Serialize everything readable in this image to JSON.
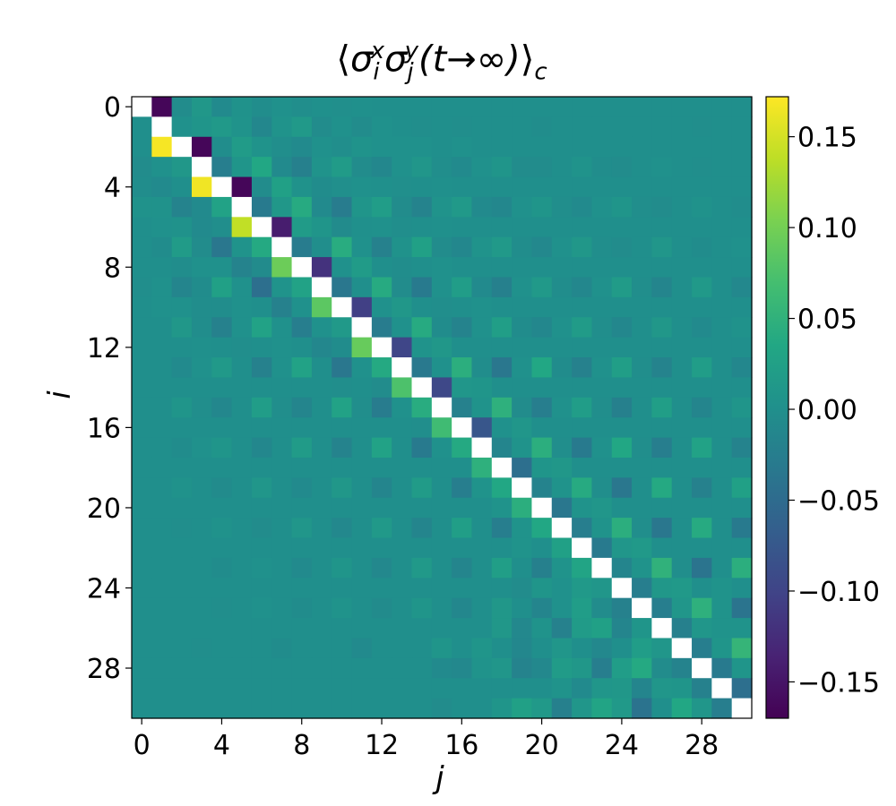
{
  "chart_data": {
    "type": "heatmap",
    "title": "⟨σᵢˣσⱼʸ(t→∞)⟩꜀",
    "title_parts": {
      "open": "⟨",
      "sigma1": "σ",
      "sup1": "x",
      "sub1": "i",
      "sigma2": "σ",
      "sup2": "y",
      "sub2": "j",
      "arg": "(t→∞)",
      "close": "⟩",
      "subc": "c"
    },
    "xlabel": "j",
    "ylabel": "i",
    "n": 31,
    "x_ticks": [
      "0",
      "4",
      "8",
      "12",
      "16",
      "20",
      "24",
      "28"
    ],
    "y_ticks": [
      "0",
      "4",
      "8",
      "12",
      "16",
      "20",
      "24",
      "28"
    ],
    "colorbar_ticks": [
      "0.15",
      "0.10",
      "0.05",
      "0.00",
      "−0.05",
      "−0.10",
      "−0.15"
    ],
    "colorbar_tick_values": [
      0.15,
      0.1,
      0.05,
      0.0,
      -0.05,
      -0.1,
      -0.15
    ],
    "vmin": -0.17,
    "vmax": 0.172,
    "colormap": "viridis",
    "diagonal": "NaN (white)",
    "cells_note": "Values read approximately; off-pattern cells ≈ 0.00",
    "values": [
      [
        null,
        -0.165,
        -0.005,
        0.012,
        -0.008,
        0.004,
        -0.003,
        0.002,
        -0.002,
        0.001,
        -0.001,
        0.001,
        0,
        0,
        0,
        0,
        0,
        0,
        0,
        0,
        0,
        0,
        0,
        0,
        0,
        0,
        0,
        0,
        0,
        0,
        0
      ],
      [
        0,
        null,
        0.002,
        0.008,
        0.015,
        0.005,
        -0.012,
        0.005,
        0.015,
        -0.005,
        0.002,
        -0.005,
        0.002,
        0,
        -0.002,
        0,
        -0.002,
        0,
        0,
        0,
        -0.003,
        0,
        0,
        0,
        0,
        0,
        0,
        0,
        -0.002,
        0,
        0
      ],
      [
        0,
        0.168,
        null,
        -0.165,
        -0.003,
        0.018,
        0.005,
        -0.002,
        -0.008,
        0.002,
        -0.002,
        0.005,
        0.002,
        0.002,
        0.002,
        0,
        0.002,
        0,
        0,
        0,
        0,
        0,
        0,
        0,
        0,
        0,
        0,
        0,
        0,
        0,
        0
      ],
      [
        -0.005,
        0.003,
        0.012,
        null,
        -0.025,
        0.008,
        0.035,
        -0.008,
        -0.022,
        0.005,
        0.018,
        -0.005,
        -0.012,
        0.002,
        0.01,
        -0.002,
        -0.008,
        0.002,
        0.008,
        -0.005,
        -0.005,
        0,
        0.005,
        -0.003,
        -0.005,
        0,
        0.003,
        0,
        -0.002,
        0,
        0
      ],
      [
        -0.003,
        -0.008,
        0,
        0.165,
        null,
        -0.165,
        -0.005,
        0.025,
        0.004,
        -0.004,
        -0.001,
        0.003,
        0.001,
        -0.001,
        0,
        0.001,
        0,
        0,
        0,
        0,
        0,
        0,
        0,
        0,
        0,
        0,
        0,
        0,
        0,
        0,
        0
      ],
      [
        0.004,
        0.004,
        -0.018,
        -0.008,
        0.028,
        null,
        -0.03,
        0.012,
        0.04,
        -0.008,
        -0.028,
        0.008,
        0.02,
        -0.005,
        -0.018,
        0.005,
        0.015,
        -0.008,
        -0.012,
        0.003,
        0.008,
        -0.002,
        -0.008,
        0.003,
        0.008,
        -0.002,
        -0.005,
        0,
        0.004,
        0,
        -0.003
      ],
      [
        0,
        0.002,
        0.004,
        -0.008,
        -0.002,
        0.14,
        null,
        -0.142,
        0.018,
        0.008,
        -0.006,
        0.001,
        0.003,
        -0.002,
        0,
        0.001,
        0,
        0,
        0,
        0,
        0,
        0,
        0,
        0,
        0,
        0,
        0,
        0,
        0,
        0,
        0
      ],
      [
        0,
        -0.004,
        0.018,
        -0.005,
        -0.035,
        0.005,
        0.038,
        null,
        -0.028,
        -0.002,
        0.042,
        0.003,
        -0.02,
        0.004,
        0.025,
        -0.005,
        -0.012,
        0.005,
        0.015,
        -0.003,
        -0.01,
        0.002,
        0.012,
        -0.002,
        -0.005,
        0,
        0.01,
        0,
        -0.004,
        0,
        0.002
      ],
      [
        0,
        0,
        -0.003,
        0.002,
        0.002,
        -0.018,
        -0.006,
        0.095,
        null,
        -0.12,
        0.003,
        0.018,
        0,
        -0.003,
        0,
        0.002,
        0,
        0,
        0,
        0,
        0,
        0,
        0,
        0,
        0,
        0,
        0,
        0,
        0,
        0,
        0
      ],
      [
        -0.002,
        0.002,
        -0.015,
        -0.004,
        0.025,
        0.003,
        -0.045,
        0.005,
        0.028,
        null,
        -0.035,
        0,
        0.04,
        -0.005,
        -0.03,
        0.003,
        0.02,
        -0.008,
        -0.022,
        0.003,
        0.015,
        -0.003,
        -0.012,
        0.002,
        0.018,
        -0.002,
        -0.015,
        0,
        0.015,
        0,
        -0.01
      ],
      [
        0,
        0.002,
        0.003,
        -0.003,
        -0.003,
        0.003,
        0,
        -0.02,
        0.003,
        0.085,
        null,
        -0.105,
        0.002,
        0.012,
        0,
        -0.002,
        0,
        0.002,
        0,
        0,
        0,
        0,
        0,
        0,
        0,
        0,
        0,
        0,
        0,
        0,
        0
      ],
      [
        0,
        0,
        0.012,
        -0.003,
        -0.02,
        0.002,
        0.028,
        0.003,
        -0.025,
        0.003,
        0.015,
        null,
        -0.028,
        0.002,
        0.04,
        -0.004,
        -0.018,
        0.003,
        0.022,
        -0.004,
        -0.012,
        0.002,
        0.018,
        -0.002,
        -0.012,
        0,
        0.012,
        0,
        -0.008,
        0,
        0.004
      ],
      [
        0,
        0,
        0,
        0.001,
        0,
        -0.002,
        0,
        0.002,
        0,
        -0.012,
        -0.004,
        0.092,
        null,
        -0.098,
        0.005,
        0.012,
        0,
        0,
        0,
        0,
        0,
        0,
        0,
        0,
        0,
        0,
        0,
        0,
        0,
        0,
        0
      ],
      [
        0,
        0,
        -0.008,
        0.002,
        0.015,
        0,
        -0.02,
        0.003,
        0.028,
        0,
        -0.035,
        0.002,
        0.038,
        null,
        -0.032,
        0.002,
        0.045,
        -0.003,
        -0.035,
        0.003,
        0.035,
        -0.004,
        -0.02,
        0.002,
        0.022,
        -0.002,
        -0.018,
        0,
        0.02,
        0,
        -0.012
      ],
      [
        0,
        0,
        0,
        0,
        0,
        0,
        0,
        0,
        0,
        0,
        -0.002,
        0,
        -0.005,
        0.075,
        null,
        -0.095,
        0.01,
        0.008,
        0,
        0,
        0,
        0,
        0,
        0,
        0,
        0,
        0,
        0,
        0,
        0,
        0
      ],
      [
        0,
        0,
        0.008,
        -0.002,
        -0.012,
        0,
        0.02,
        -0.002,
        -0.015,
        0,
        0.028,
        -0.002,
        -0.028,
        0.002,
        0.042,
        null,
        -0.02,
        0.005,
        0.048,
        -0.005,
        -0.025,
        0.003,
        0.02,
        -0.002,
        -0.022,
        0,
        0.022,
        0,
        -0.015,
        0,
        0.008
      ],
      [
        0,
        0,
        0,
        0,
        0,
        0,
        0,
        0,
        0,
        0,
        0,
        0,
        0,
        0,
        -0.002,
        0.065,
        null,
        -0.078,
        0.003,
        0.01,
        0,
        0,
        0,
        0,
        0,
        0,
        0,
        0,
        0,
        0,
        0
      ],
      [
        0,
        0,
        -0.004,
        0.002,
        0.008,
        0,
        -0.012,
        0,
        0.018,
        0,
        -0.018,
        0,
        0.028,
        0,
        -0.03,
        0.002,
        0.038,
        null,
        -0.015,
        0.005,
        0.045,
        -0.002,
        -0.03,
        0.002,
        0.035,
        -0.002,
        -0.025,
        0,
        0.028,
        0,
        -0.018
      ],
      [
        0,
        0,
        0,
        0,
        0,
        0,
        0,
        0,
        0,
        0,
        0,
        0,
        0,
        0,
        0,
        0,
        0,
        0.048,
        null,
        -0.045,
        0.008,
        0.012,
        0,
        0,
        0,
        0,
        0,
        0,
        0,
        0,
        0
      ],
      [
        0,
        0,
        0.004,
        0,
        -0.006,
        0,
        0.01,
        0,
        -0.008,
        0,
        0.012,
        0,
        -0.015,
        0,
        0.018,
        0,
        -0.025,
        0.005,
        0.035,
        null,
        -0.018,
        0.005,
        0.04,
        -0.002,
        -0.035,
        0,
        0.038,
        0,
        -0.02,
        0,
        0.025
      ],
      [
        0,
        0,
        0,
        0,
        0,
        0,
        0,
        0,
        0,
        0,
        0,
        0,
        0,
        0,
        0,
        0,
        0,
        0,
        0.005,
        0.045,
        null,
        -0.035,
        0.005,
        0.01,
        0,
        0,
        0,
        0,
        0,
        0,
        0
      ],
      [
        0,
        0,
        -0.002,
        0,
        0.004,
        0,
        -0.005,
        0,
        0.01,
        0,
        -0.01,
        0,
        0.015,
        0,
        -0.015,
        0,
        0.022,
        0,
        -0.025,
        0.005,
        0.035,
        null,
        -0.025,
        0.005,
        0.045,
        -0.002,
        -0.035,
        0,
        0.04,
        0,
        -0.03
      ],
      [
        0,
        0,
        0,
        0,
        0,
        0,
        0,
        0,
        0,
        0,
        0,
        0,
        0,
        0,
        0,
        0,
        0,
        0,
        0,
        0.005,
        0,
        0.025,
        null,
        -0.03,
        0.01,
        0.015,
        0,
        0,
        0,
        0,
        0
      ],
      [
        0,
        0,
        0,
        0,
        -0.004,
        0,
        0.003,
        0,
        -0.008,
        0,
        0.008,
        0,
        -0.01,
        0,
        0.015,
        0,
        -0.015,
        0,
        0.022,
        0,
        -0.022,
        0.005,
        0.03,
        null,
        -0.015,
        0.005,
        0.05,
        -0.002,
        -0.038,
        0,
        0.045
      ],
      [
        0,
        0,
        0,
        0,
        0,
        0,
        0,
        0,
        0,
        0,
        0,
        0,
        0,
        0,
        0,
        0,
        0,
        0,
        0,
        -0.005,
        0.008,
        0.002,
        0.015,
        0.01,
        null,
        -0.025,
        0.012,
        0.015,
        0,
        0.005,
        0
      ],
      [
        0,
        0,
        0,
        0,
        -0.002,
        0,
        0.002,
        0,
        -0.004,
        0,
        0.005,
        0,
        -0.006,
        0,
        0.008,
        0,
        -0.012,
        0,
        0.012,
        0,
        -0.015,
        0.002,
        0.02,
        -0.005,
        -0.02,
        null,
        -0.025,
        0.01,
        0.048,
        0.005,
        -0.038
      ],
      [
        0,
        0,
        0,
        0,
        0,
        0,
        0,
        0,
        0,
        0,
        0,
        0,
        0,
        0,
        0,
        0,
        0,
        0,
        0.012,
        -0.01,
        0.005,
        -0.02,
        0.018,
        0.025,
        -0.015,
        0.008,
        null,
        -0.022,
        0.01,
        0.005,
        0.005
      ],
      [
        0,
        0,
        0,
        -0.002,
        0,
        0,
        0,
        -0.004,
        0,
        0,
        0,
        -0.008,
        0,
        0,
        0,
        0.008,
        0,
        0.008,
        0,
        -0.012,
        0,
        0.01,
        0,
        -0.01,
        0,
        0.02,
        0.01,
        null,
        -0.025,
        0.008,
        0.055
      ],
      [
        0,
        0,
        0,
        0,
        0,
        0,
        0,
        0,
        0,
        0,
        0,
        0,
        0,
        0,
        0,
        -0.008,
        -0.01,
        0.005,
        0.01,
        -0.018,
        -0.01,
        0.018,
        0.012,
        -0.025,
        0.02,
        0.038,
        -0.005,
        -0.018,
        null,
        -0.03,
        0.008
      ],
      [
        0,
        0,
        0,
        0,
        0,
        0,
        0,
        0,
        0,
        0,
        0,
        0,
        0,
        0,
        0,
        0,
        0,
        0,
        0,
        0,
        0,
        0.005,
        -0.008,
        0.01,
        0.012,
        -0.015,
        0.01,
        0.008,
        -0.02,
        null,
        -0.045
      ],
      [
        0,
        0,
        0,
        0,
        0,
        0,
        0,
        0,
        0,
        0,
        0,
        0,
        0,
        0,
        0,
        -0.005,
        0,
        0,
        0.008,
        0.025,
        0.015,
        -0.022,
        0.01,
        0.03,
        0.015,
        -0.04,
        0,
        0.035,
        0.01,
        -0.025,
        null
      ]
    ]
  }
}
